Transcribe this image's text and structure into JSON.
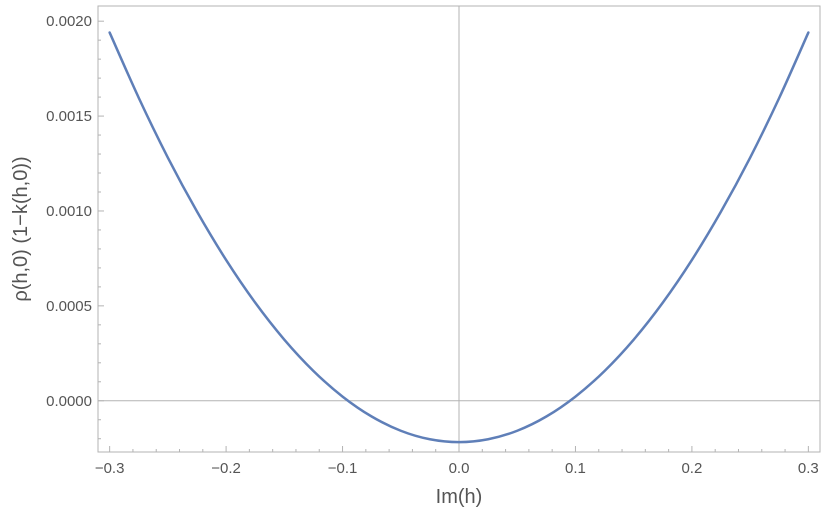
{
  "chart_data": {
    "type": "line",
    "title": "",
    "xlabel": "Im(h)",
    "ylabel": "ρ(h,0) (1−k(h,0))",
    "xlim": [
      -0.31,
      0.31
    ],
    "ylim": [
      -0.00027,
      0.00208
    ],
    "x_ticks": [
      -0.3,
      -0.2,
      -0.1,
      0.0,
      0.1,
      0.2,
      0.3
    ],
    "x_tick_labels": [
      "−0.3",
      "−0.2",
      "−0.1",
      "0.0",
      "0.1",
      "0.2",
      "0.3"
    ],
    "y_ticks": [
      0.0,
      0.0005,
      0.001,
      0.0015,
      0.002
    ],
    "y_tick_labels": [
      "0.0000",
      "0.0005",
      "0.0010",
      "0.0015",
      "0.0020"
    ],
    "grid": false,
    "frame": true,
    "colors": {
      "series": "#5f7fb8",
      "frame": "#b3b3b3",
      "zero_axis": "#b3b3b3",
      "text": "#555555"
    },
    "series": [
      {
        "color": "#5f7fb8",
        "x": [
          -0.3,
          -0.275,
          -0.25,
          -0.225,
          -0.2,
          -0.175,
          -0.15,
          -0.125,
          -0.1,
          -0.075,
          -0.05,
          -0.025,
          0.0,
          0.025,
          0.05,
          0.075,
          0.1,
          0.125,
          0.15,
          0.175,
          0.2,
          0.225,
          0.25,
          0.275,
          0.3
        ],
        "y": [
          0.00194,
          0.001596,
          0.001281,
          0.000997,
          0.000742,
          0.000517,
          0.000322,
          0.000157,
          2.2e-05,
          -8.3e-05,
          -0.000158,
          -0.000203,
          -0.000218,
          -0.000203,
          -0.000158,
          -8.3e-05,
          2.2e-05,
          0.000157,
          0.000322,
          0.000517,
          0.000742,
          0.000997,
          0.001281,
          0.001596,
          0.00194
        ]
      }
    ]
  }
}
